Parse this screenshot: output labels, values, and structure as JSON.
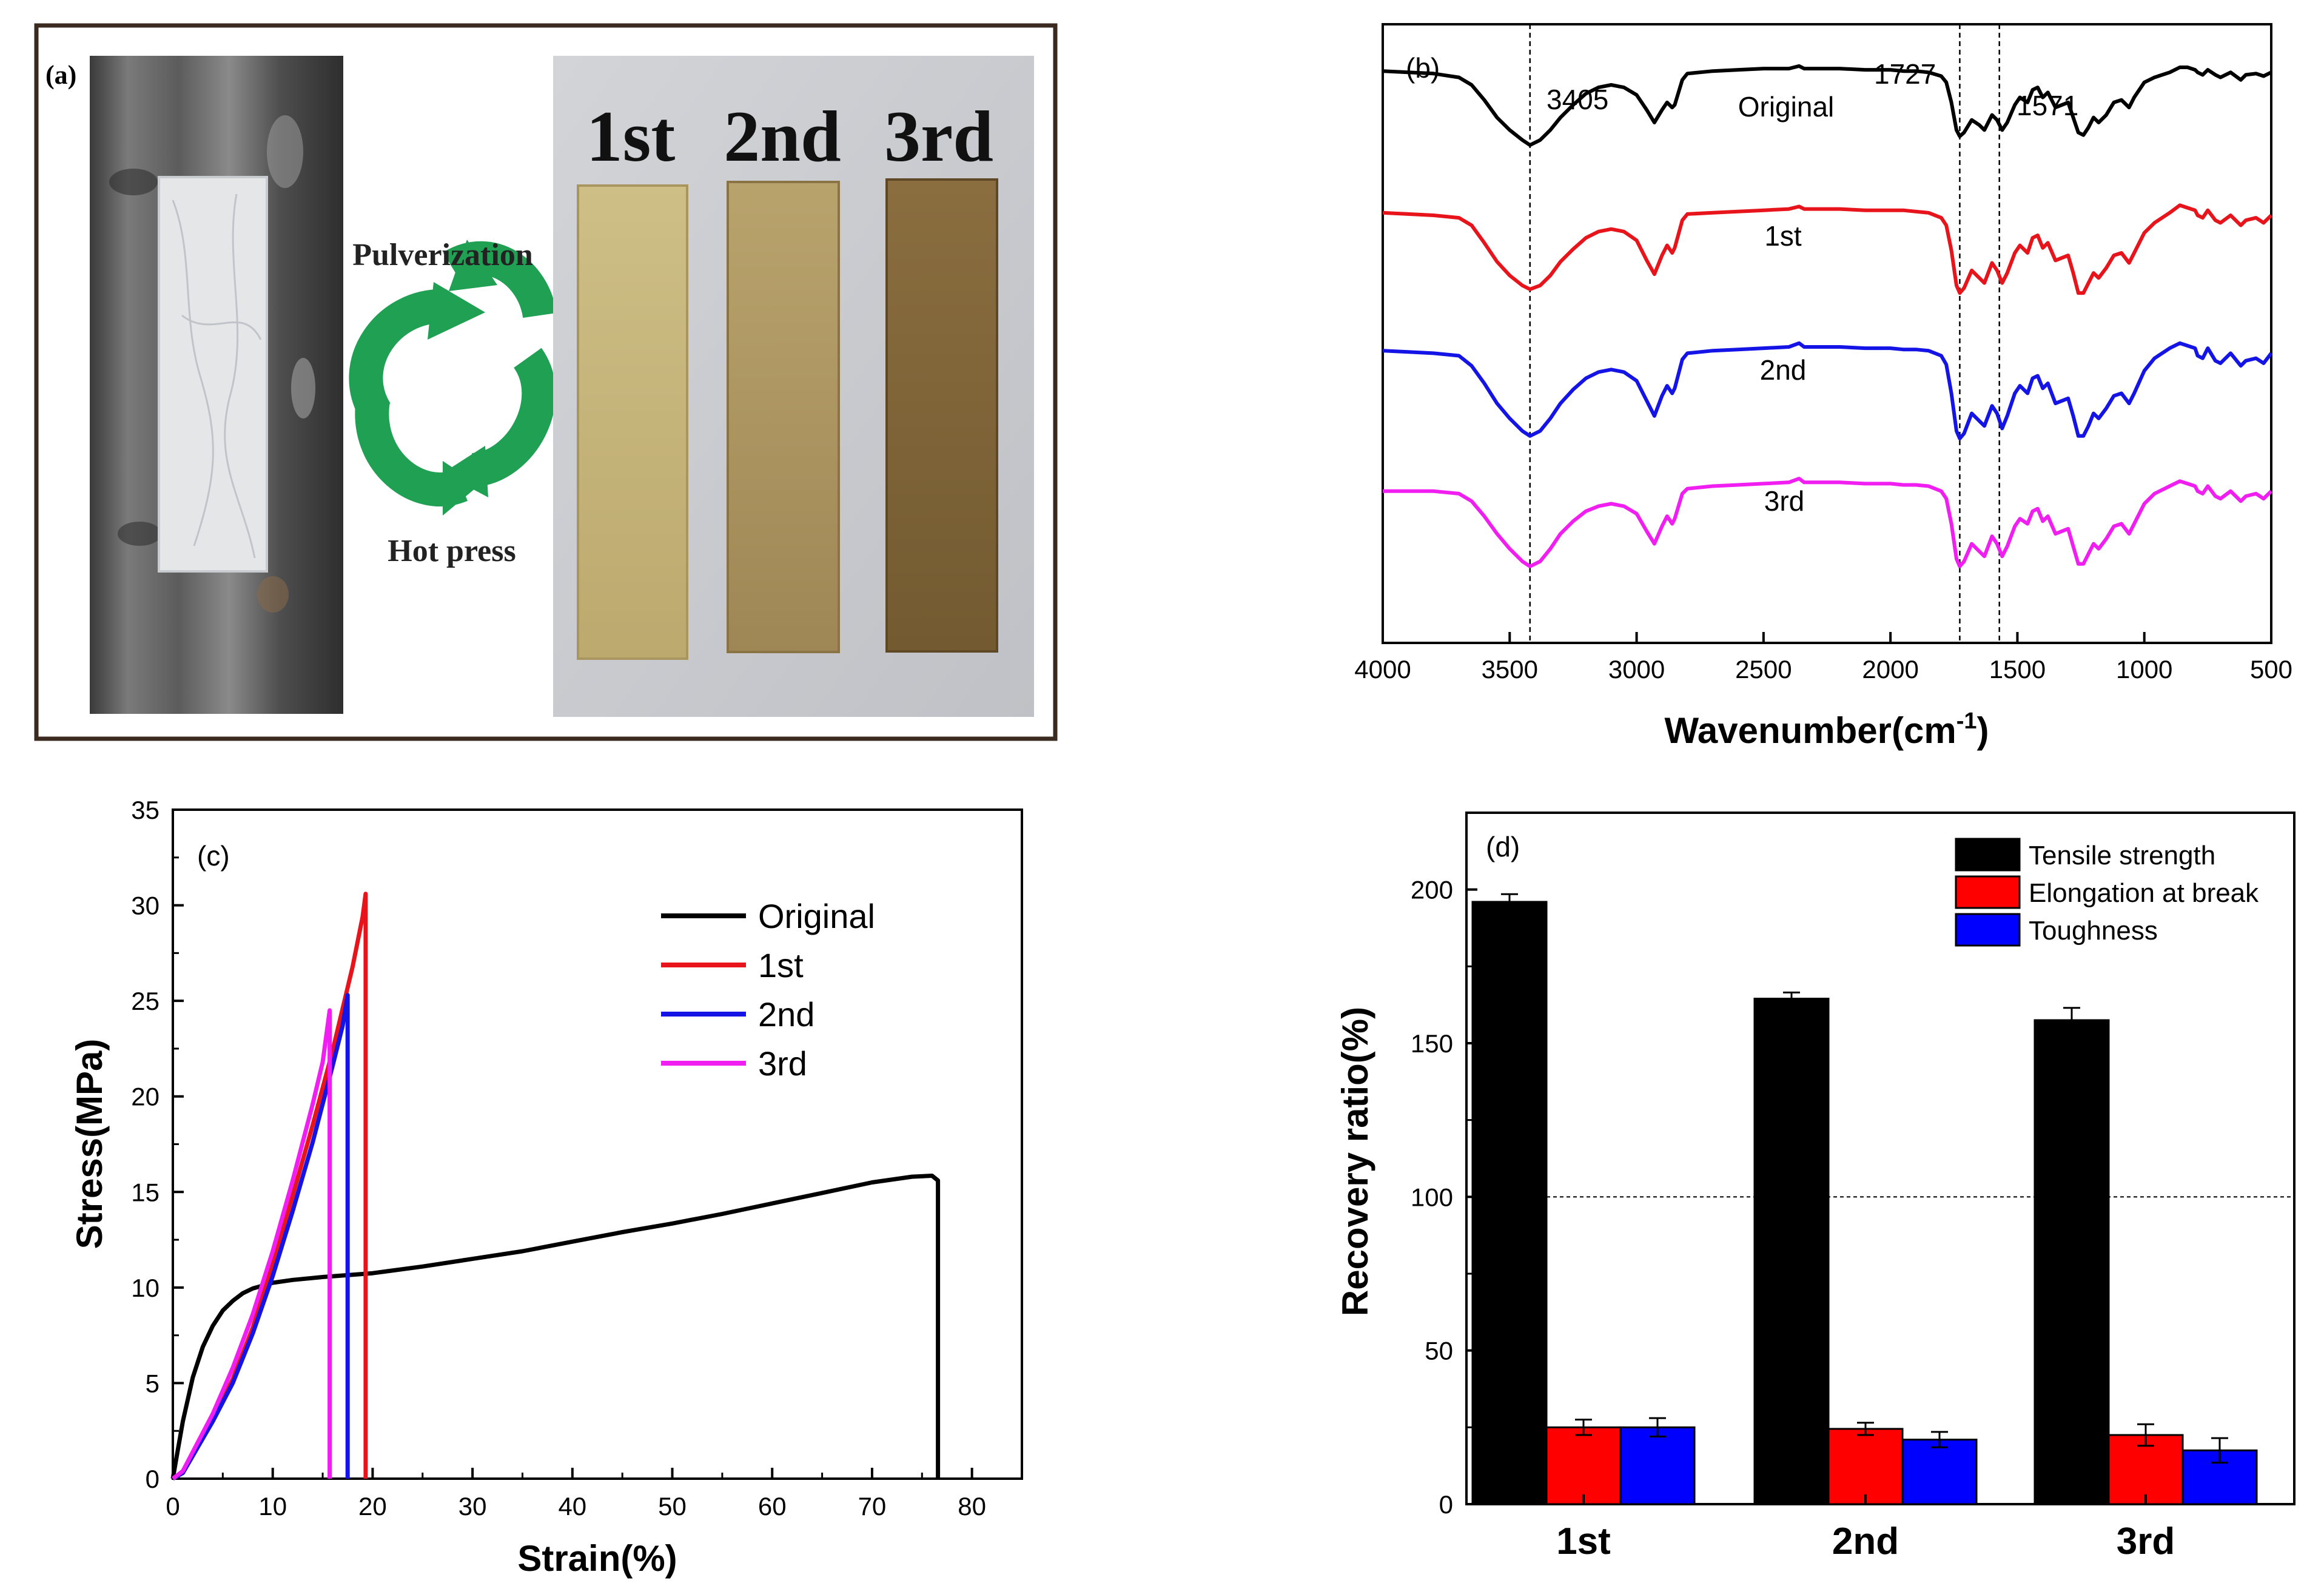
{
  "panel_a": {
    "label": "(a)",
    "sample_labels": [
      "1st",
      "2nd",
      "3rd"
    ],
    "arrow_top_label": "Pulverization",
    "arrow_bottom_label": "Hot press",
    "colors": {
      "arrow": "#1fa052",
      "sample_1st": "#c4b57c",
      "sample_2nd": "#ad9762",
      "sample_3rd": "#7f6438",
      "sheet": "#e4e6e8"
    }
  },
  "chart_data": [
    {
      "id": "b",
      "type": "line",
      "panel_label": "(b)",
      "xlabel": "Wavenumber(cm",
      "xlabel_sup": "-1",
      "xlabel_tail": ")",
      "xlim": [
        4000,
        500
      ],
      "xticks": [
        4000,
        3500,
        3000,
        2500,
        2000,
        1500,
        1000,
        500
      ],
      "peaks": [
        3405,
        1727,
        1571
      ],
      "peak_lines_x": [
        3420,
        1727,
        1571
      ],
      "series": [
        {
          "name": "Original",
          "color": "#000000",
          "offset": 3.3,
          "x": [
            4000,
            3900,
            3800,
            3700,
            3650,
            3600,
            3550,
            3500,
            3450,
            3420,
            3380,
            3340,
            3300,
            3250,
            3200,
            3150,
            3100,
            3050,
            3000,
            2960,
            2930,
            2900,
            2880,
            2860,
            2850,
            2820,
            2800,
            2700,
            2600,
            2500,
            2400,
            2360,
            2340,
            2300,
            2200,
            2100,
            2000,
            1950,
            1900,
            1850,
            1800,
            1780,
            1760,
            1740,
            1727,
            1710,
            1680,
            1650,
            1630,
            1600,
            1580,
            1560,
            1540,
            1510,
            1490,
            1460,
            1440,
            1420,
            1400,
            1380,
            1350,
            1300,
            1280,
            1260,
            1240,
            1220,
            1200,
            1180,
            1150,
            1120,
            1090,
            1060,
            1040,
            1000,
            960,
            900,
            860,
            830,
            800,
            790,
            770,
            750,
            720,
            700,
            660,
            620,
            600,
            560,
            530,
            500
          ],
          "y": [
            0.97,
            0.96,
            0.95,
            0.92,
            0.86,
            0.74,
            0.6,
            0.5,
            0.42,
            0.38,
            0.42,
            0.5,
            0.6,
            0.7,
            0.79,
            0.84,
            0.86,
            0.84,
            0.78,
            0.66,
            0.56,
            0.66,
            0.72,
            0.68,
            0.7,
            0.9,
            0.95,
            0.97,
            0.98,
            0.99,
            0.99,
            1.01,
            0.99,
            0.99,
            0.99,
            0.98,
            0.98,
            0.97,
            0.97,
            0.96,
            0.93,
            0.88,
            0.72,
            0.5,
            0.45,
            0.48,
            0.58,
            0.54,
            0.5,
            0.62,
            0.58,
            0.5,
            0.56,
            0.7,
            0.76,
            0.72,
            0.82,
            0.84,
            0.76,
            0.8,
            0.68,
            0.72,
            0.6,
            0.48,
            0.46,
            0.52,
            0.6,
            0.56,
            0.62,
            0.72,
            0.74,
            0.68,
            0.76,
            0.88,
            0.92,
            0.96,
            1.0,
            1.0,
            0.98,
            0.96,
            0.94,
            0.98,
            0.94,
            0.92,
            0.96,
            0.9,
            0.94,
            0.95,
            0.93,
            0.96
          ]
        },
        {
          "name": "1st",
          "color": "#e8141b",
          "offset": 2.2,
          "x": [
            4000,
            3900,
            3800,
            3700,
            3650,
            3600,
            3550,
            3500,
            3450,
            3420,
            3380,
            3340,
            3300,
            3250,
            3200,
            3150,
            3100,
            3050,
            3000,
            2960,
            2930,
            2900,
            2880,
            2860,
            2850,
            2820,
            2800,
            2700,
            2600,
            2500,
            2400,
            2360,
            2340,
            2300,
            2200,
            2100,
            2000,
            1950,
            1900,
            1850,
            1800,
            1780,
            1760,
            1740,
            1727,
            1710,
            1680,
            1650,
            1630,
            1600,
            1580,
            1560,
            1540,
            1510,
            1490,
            1460,
            1440,
            1420,
            1400,
            1380,
            1350,
            1300,
            1280,
            1260,
            1240,
            1220,
            1200,
            1180,
            1150,
            1120,
            1090,
            1060,
            1040,
            1000,
            960,
            900,
            860,
            830,
            800,
            790,
            770,
            750,
            720,
            700,
            660,
            620,
            600,
            560,
            530,
            500
          ],
          "y": [
            0.94,
            0.93,
            0.92,
            0.9,
            0.84,
            0.7,
            0.55,
            0.44,
            0.36,
            0.33,
            0.36,
            0.44,
            0.55,
            0.65,
            0.74,
            0.79,
            0.81,
            0.79,
            0.72,
            0.56,
            0.45,
            0.6,
            0.68,
            0.62,
            0.66,
            0.88,
            0.93,
            0.94,
            0.95,
            0.96,
            0.97,
            0.99,
            0.97,
            0.97,
            0.97,
            0.96,
            0.96,
            0.96,
            0.95,
            0.94,
            0.9,
            0.84,
            0.64,
            0.36,
            0.3,
            0.34,
            0.48,
            0.42,
            0.38,
            0.54,
            0.48,
            0.38,
            0.46,
            0.62,
            0.68,
            0.62,
            0.74,
            0.76,
            0.66,
            0.7,
            0.56,
            0.6,
            0.46,
            0.3,
            0.3,
            0.38,
            0.46,
            0.42,
            0.5,
            0.6,
            0.62,
            0.54,
            0.62,
            0.78,
            0.86,
            0.94,
            1.0,
            0.98,
            0.96,
            0.92,
            0.9,
            0.96,
            0.88,
            0.86,
            0.92,
            0.84,
            0.88,
            0.9,
            0.86,
            0.92
          ]
        },
        {
          "name": "2nd",
          "color": "#1414e6",
          "offset": 1.1,
          "x": [
            4000,
            3900,
            3800,
            3700,
            3650,
            3600,
            3550,
            3500,
            3450,
            3420,
            3380,
            3340,
            3300,
            3250,
            3200,
            3150,
            3100,
            3050,
            3000,
            2960,
            2930,
            2900,
            2880,
            2860,
            2850,
            2820,
            2800,
            2700,
            2600,
            2500,
            2400,
            2360,
            2340,
            2300,
            2200,
            2100,
            2000,
            1950,
            1900,
            1850,
            1800,
            1780,
            1760,
            1740,
            1727,
            1710,
            1680,
            1650,
            1630,
            1600,
            1580,
            1560,
            1540,
            1510,
            1490,
            1460,
            1440,
            1420,
            1400,
            1380,
            1350,
            1300,
            1280,
            1260,
            1240,
            1220,
            1200,
            1180,
            1150,
            1120,
            1090,
            1060,
            1040,
            1000,
            960,
            900,
            860,
            830,
            800,
            790,
            770,
            750,
            720,
            700,
            660,
            620,
            600,
            560,
            530,
            500
          ],
          "y": [
            0.94,
            0.93,
            0.92,
            0.9,
            0.82,
            0.68,
            0.52,
            0.4,
            0.3,
            0.26,
            0.3,
            0.4,
            0.52,
            0.63,
            0.72,
            0.77,
            0.79,
            0.77,
            0.7,
            0.54,
            0.42,
            0.58,
            0.66,
            0.6,
            0.64,
            0.87,
            0.92,
            0.94,
            0.95,
            0.96,
            0.97,
            1.0,
            0.97,
            0.97,
            0.97,
            0.96,
            0.96,
            0.95,
            0.95,
            0.94,
            0.9,
            0.83,
            0.6,
            0.3,
            0.24,
            0.28,
            0.44,
            0.38,
            0.34,
            0.5,
            0.44,
            0.32,
            0.42,
            0.6,
            0.66,
            0.6,
            0.72,
            0.74,
            0.64,
            0.68,
            0.52,
            0.56,
            0.42,
            0.26,
            0.26,
            0.34,
            0.44,
            0.4,
            0.48,
            0.58,
            0.6,
            0.52,
            0.6,
            0.78,
            0.88,
            0.96,
            1.0,
            0.98,
            0.96,
            0.9,
            0.88,
            0.96,
            0.86,
            0.84,
            0.92,
            0.82,
            0.86,
            0.88,
            0.84,
            0.92
          ]
        },
        {
          "name": "3rd",
          "color": "#f01ef0",
          "offset": 0.0,
          "x": [
            4000,
            3900,
            3800,
            3700,
            3650,
            3600,
            3550,
            3500,
            3450,
            3420,
            3380,
            3340,
            3300,
            3250,
            3200,
            3150,
            3100,
            3050,
            3000,
            2960,
            2930,
            2900,
            2880,
            2860,
            2850,
            2820,
            2800,
            2700,
            2600,
            2500,
            2400,
            2360,
            2340,
            2300,
            2200,
            2100,
            2000,
            1950,
            1900,
            1850,
            1800,
            1780,
            1760,
            1740,
            1727,
            1710,
            1680,
            1650,
            1630,
            1600,
            1580,
            1560,
            1540,
            1510,
            1490,
            1460,
            1440,
            1420,
            1400,
            1380,
            1350,
            1300,
            1280,
            1260,
            1240,
            1220,
            1200,
            1180,
            1150,
            1120,
            1090,
            1060,
            1040,
            1000,
            960,
            900,
            860,
            830,
            800,
            790,
            770,
            750,
            720,
            700,
            660,
            620,
            600,
            560,
            530,
            500
          ],
          "y": [
            0.92,
            0.92,
            0.92,
            0.9,
            0.84,
            0.72,
            0.58,
            0.46,
            0.36,
            0.32,
            0.36,
            0.46,
            0.58,
            0.68,
            0.76,
            0.8,
            0.82,
            0.8,
            0.74,
            0.6,
            0.5,
            0.64,
            0.72,
            0.66,
            0.7,
            0.9,
            0.94,
            0.96,
            0.97,
            0.98,
            0.99,
            1.02,
            0.99,
            0.99,
            0.99,
            0.98,
            0.98,
            0.97,
            0.97,
            0.96,
            0.92,
            0.86,
            0.66,
            0.38,
            0.32,
            0.36,
            0.5,
            0.44,
            0.4,
            0.56,
            0.5,
            0.4,
            0.48,
            0.64,
            0.7,
            0.66,
            0.76,
            0.78,
            0.68,
            0.72,
            0.58,
            0.62,
            0.48,
            0.34,
            0.34,
            0.42,
            0.5,
            0.46,
            0.54,
            0.64,
            0.66,
            0.58,
            0.66,
            0.82,
            0.9,
            0.96,
            1.0,
            0.98,
            0.96,
            0.92,
            0.9,
            0.96,
            0.88,
            0.86,
            0.92,
            0.84,
            0.88,
            0.9,
            0.86,
            0.92
          ]
        }
      ]
    },
    {
      "id": "c",
      "type": "line",
      "panel_label": "(c)",
      "xlabel": "Strain(%)",
      "ylabel": "Stress(MPa)",
      "xlim": [
        0,
        85
      ],
      "ylim": [
        0,
        35
      ],
      "xticks": [
        0,
        10,
        20,
        30,
        40,
        50,
        60,
        70,
        80
      ],
      "yticks": [
        0,
        5,
        10,
        15,
        20,
        25,
        30,
        35
      ],
      "legend_position": "top-right",
      "series": [
        {
          "name": "Original",
          "color": "#000000",
          "x": [
            0,
            0.5,
            1,
            2,
            3,
            4,
            5,
            6,
            7,
            8,
            9,
            10,
            12,
            15,
            20,
            25,
            30,
            35,
            40,
            45,
            50,
            55,
            60,
            65,
            70,
            74,
            76,
            76.6,
            76.6
          ],
          "y": [
            0,
            1.5,
            3.0,
            5.3,
            6.9,
            8.0,
            8.8,
            9.3,
            9.7,
            9.95,
            10.1,
            10.25,
            10.4,
            10.55,
            10.75,
            11.1,
            11.5,
            11.9,
            12.4,
            12.9,
            13.35,
            13.85,
            14.4,
            14.95,
            15.5,
            15.8,
            15.85,
            15.6,
            0
          ]
        },
        {
          "name": "1st",
          "color": "#e8141b",
          "x": [
            0,
            1,
            2,
            4,
            6,
            8,
            10,
            12,
            14,
            16,
            17,
            18,
            19,
            19.3,
            19.3
          ],
          "y": [
            0,
            0.3,
            1.2,
            3.1,
            5.2,
            7.9,
            11.2,
            14.8,
            18.5,
            22.4,
            24.6,
            26.8,
            29.4,
            30.6,
            0
          ]
        },
        {
          "name": "2nd",
          "color": "#1414e6",
          "x": [
            0,
            1,
            2,
            4,
            6,
            8,
            10,
            12,
            14,
            16,
            17,
            17.5,
            17.5
          ],
          "y": [
            0,
            0.3,
            1.2,
            3.0,
            5.0,
            7.6,
            10.6,
            14.0,
            17.6,
            21.6,
            23.7,
            25.3,
            0
          ]
        },
        {
          "name": "3rd",
          "color": "#f01ef0",
          "x": [
            0,
            1,
            2,
            4,
            6,
            8,
            10,
            12,
            14,
            15,
            15.7,
            15.7
          ],
          "y": [
            0,
            0.4,
            1.4,
            3.4,
            5.8,
            8.6,
            11.9,
            15.6,
            19.6,
            21.8,
            24.5,
            0
          ]
        }
      ]
    },
    {
      "id": "d",
      "type": "bar",
      "panel_label": "(d)",
      "ylabel": "Recovery ratio(%)",
      "ylim": [
        0,
        225
      ],
      "yticks": [
        0,
        50,
        100,
        150,
        200
      ],
      "reference_line": 100,
      "categories": [
        "1st",
        "2nd",
        "3rd"
      ],
      "legend_position": "top-right",
      "series": [
        {
          "name": "Tensile strength",
          "color": "#000000",
          "values": [
            196,
            164.5,
            157.5
          ],
          "errors": [
            2.5,
            2.0,
            4.0
          ]
        },
        {
          "name": "Elongation at break",
          "color": "#ff0000",
          "values": [
            25,
            24.5,
            22.5
          ],
          "errors": [
            2.5,
            2.0,
            3.5
          ]
        },
        {
          "name": "Toughness",
          "color": "#0000ff",
          "values": [
            25,
            21,
            17.5
          ],
          "errors": [
            3.0,
            2.5,
            4.0
          ]
        }
      ]
    }
  ]
}
